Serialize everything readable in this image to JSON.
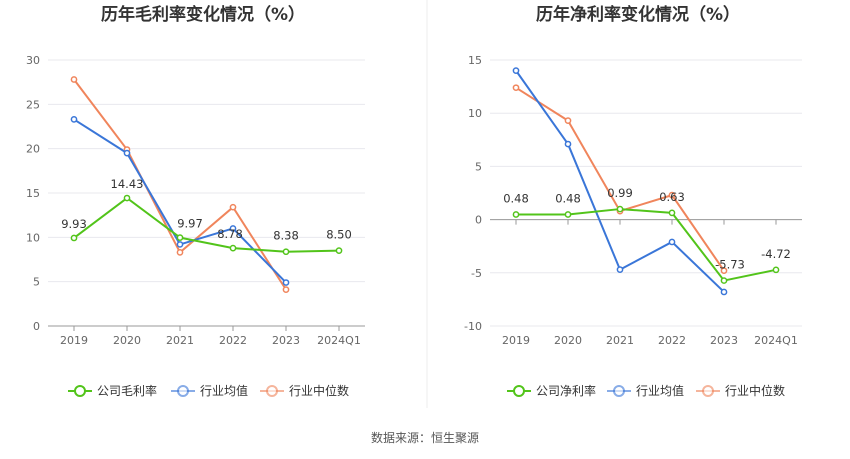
{
  "source_label": "数据来源：恒生聚源",
  "legend": {
    "left": [
      "公司毛利率",
      "行业均值",
      "行业中位数"
    ],
    "right": [
      "公司净利率",
      "行业均值",
      "行业中位数"
    ]
  },
  "colors": {
    "company": "#52c41a",
    "industry_mean": "#3a76d8",
    "industry_median": "#f0855c",
    "grid": "#e8e8ee",
    "axis": "#999999",
    "divider": "#eeeeee"
  },
  "chart_data": [
    {
      "type": "line",
      "title": "历年毛利率变化情况（%）",
      "categories": [
        "2019",
        "2020",
        "2021",
        "2022",
        "2023",
        "2024Q1"
      ],
      "ylim": [
        0,
        30
      ],
      "yticks": [
        "0",
        "5",
        "10",
        "15",
        "20",
        "25",
        "30"
      ],
      "grid": true,
      "legend_position": "bottom",
      "series": [
        {
          "name": "公司毛利率",
          "role": "company",
          "values": [
            9.93,
            14.43,
            9.97,
            8.78,
            8.38,
            8.5
          ],
          "labels": [
            "9.93",
            "14.43",
            "9.97",
            "8.78",
            "8.38",
            "8.50"
          ]
        },
        {
          "name": "行业均值",
          "role": "industry_mean",
          "values": [
            23.3,
            19.5,
            9.2,
            11.0,
            4.9,
            null
          ]
        },
        {
          "name": "行业中位数",
          "role": "industry_median",
          "values": [
            27.8,
            19.9,
            8.3,
            13.4,
            4.1,
            null
          ]
        }
      ]
    },
    {
      "type": "line",
      "title": "历年净利率变化情况（%）",
      "categories": [
        "2019",
        "2020",
        "2021",
        "2022",
        "2023",
        "2024Q1"
      ],
      "ylim": [
        -10,
        15
      ],
      "yticks": [
        "-10",
        "-5",
        "0",
        "5",
        "10",
        "15"
      ],
      "grid": true,
      "legend_position": "bottom",
      "series": [
        {
          "name": "公司净利率",
          "role": "company",
          "values": [
            0.48,
            0.48,
            0.99,
            0.63,
            -5.73,
            -4.72
          ],
          "labels": [
            "0.48",
            "0.48",
            "0.99",
            "0.63",
            "-5.73",
            "-4.72"
          ]
        },
        {
          "name": "行业均值",
          "role": "industry_mean",
          "values": [
            14.0,
            7.1,
            -4.7,
            -2.1,
            -6.8,
            null
          ]
        },
        {
          "name": "行业中位数",
          "role": "industry_median",
          "values": [
            12.4,
            9.3,
            0.8,
            2.3,
            -4.8,
            null
          ]
        }
      ]
    }
  ]
}
